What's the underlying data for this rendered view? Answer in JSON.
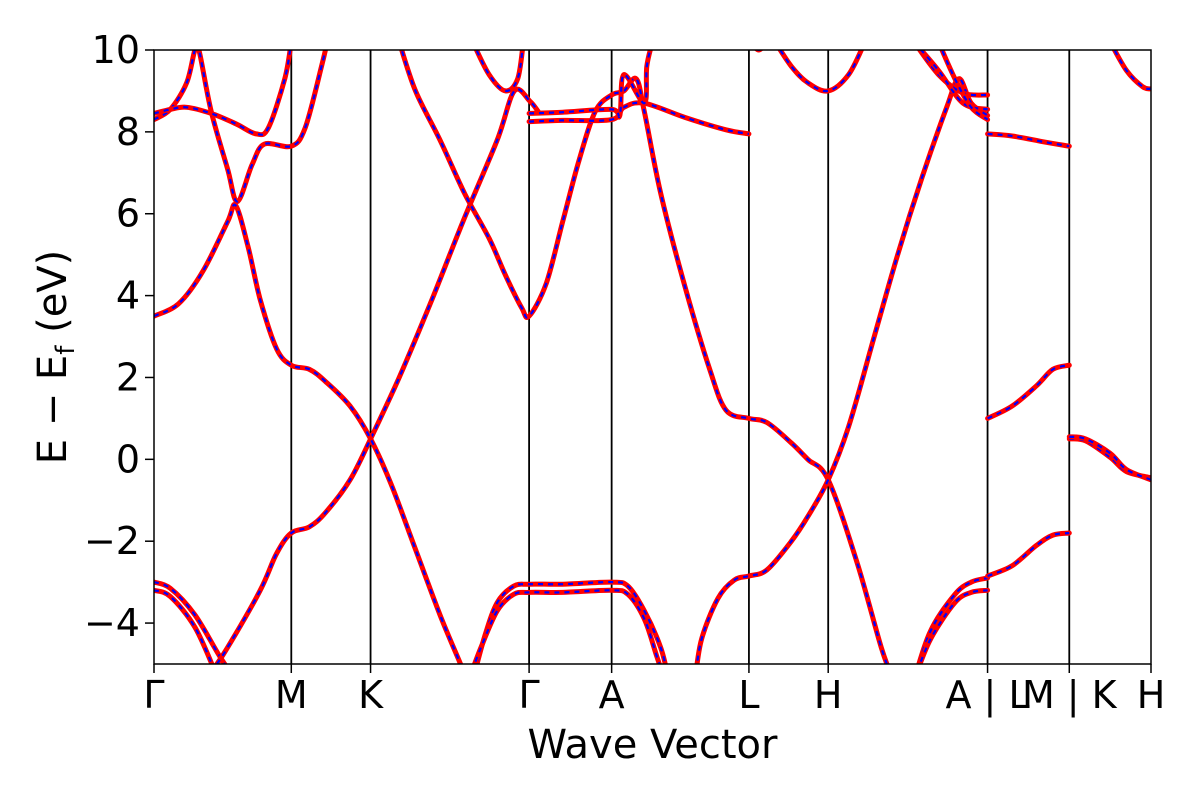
{
  "chart_data": {
    "type": "line",
    "xlabel": "Wave Vector",
    "ylabel": "E − E",
    "ylabel_sub": "f",
    "ylabel_unit": " (eV)",
    "ylim": [
      -5,
      10
    ],
    "yticks": [
      -4,
      -2,
      0,
      2,
      4,
      6,
      8,
      10
    ],
    "ytick_labels": [
      "−4",
      "−2",
      "0",
      "2",
      "4",
      "6",
      "8",
      "10"
    ],
    "xlim": [
      0,
      1.22
    ],
    "kpoints": [
      {
        "x": 0.0,
        "label": "Γ"
      },
      {
        "x": 0.168,
        "label": "M"
      },
      {
        "x": 0.265,
        "label": "K"
      },
      {
        "x": 0.459,
        "label": "Γ"
      },
      {
        "x": 0.56,
        "label": "A"
      },
      {
        "x": 0.728,
        "label": "L"
      },
      {
        "x": 0.825,
        "label": "H"
      },
      {
        "x": 1.02,
        "label": "A | L"
      },
      {
        "x": 1.12,
        "label": "M | K"
      },
      {
        "x": 1.22,
        "label": "H"
      }
    ],
    "line_colors": {
      "solid": "#ff0000",
      "dashed": "#0000ff"
    },
    "bands": [
      [
        [
          0.0,
          -3.0
        ],
        [
          0.02,
          -3.15
        ],
        [
          0.05,
          -3.8
        ],
        [
          0.08,
          -4.8
        ],
        [
          0.1,
          -5.4
        ]
      ],
      [
        [
          0.0,
          -3.2
        ],
        [
          0.02,
          -3.35
        ],
        [
          0.05,
          -4.1
        ],
        [
          0.075,
          -5.2
        ]
      ],
      [
        [
          0.07,
          -5.2
        ],
        [
          0.09,
          -4.6
        ],
        [
          0.13,
          -3.2
        ],
        [
          0.15,
          -2.3
        ],
        [
          0.168,
          -1.8
        ],
        [
          0.19,
          -1.65
        ],
        [
          0.21,
          -1.3
        ],
        [
          0.24,
          -0.5
        ],
        [
          0.265,
          0.5
        ],
        [
          0.3,
          2.0
        ],
        [
          0.34,
          3.9
        ],
        [
          0.38,
          5.9
        ],
        [
          0.42,
          7.8
        ],
        [
          0.441,
          9.0
        ],
        [
          0.46,
          8.75
        ],
        [
          0.47,
          8.5
        ]
      ],
      [
        [
          0.0,
          3.5
        ],
        [
          0.03,
          3.8
        ],
        [
          0.06,
          4.6
        ],
        [
          0.09,
          5.8
        ],
        [
          0.1,
          6.2
        ],
        [
          0.115,
          5.2
        ],
        [
          0.13,
          3.9
        ],
        [
          0.15,
          2.7
        ],
        [
          0.168,
          2.3
        ],
        [
          0.19,
          2.2
        ],
        [
          0.21,
          1.9
        ],
        [
          0.24,
          1.3
        ],
        [
          0.265,
          0.5
        ],
        [
          0.29,
          -0.6
        ],
        [
          0.32,
          -2.2
        ],
        [
          0.35,
          -3.8
        ],
        [
          0.375,
          -5.0
        ],
        [
          0.385,
          -5.5
        ]
      ],
      [
        [
          0.0,
          8.3
        ],
        [
          0.02,
          8.55
        ],
        [
          0.04,
          9.2
        ],
        [
          0.05,
          10.0
        ],
        [
          0.055,
          10.0
        ],
        [
          0.07,
          8.5
        ],
        [
          0.09,
          7.1
        ],
        [
          0.102,
          6.3
        ],
        [
          0.12,
          7.2
        ],
        [
          0.135,
          7.7
        ],
        [
          0.168,
          7.65
        ],
        [
          0.185,
          8.1
        ],
        [
          0.205,
          9.6
        ],
        [
          0.212,
          10.2
        ]
      ],
      [
        [
          0.0,
          8.45
        ],
        [
          0.02,
          8.55
        ],
        [
          0.04,
          8.6
        ],
        [
          0.07,
          8.45
        ],
        [
          0.1,
          8.2
        ],
        [
          0.125,
          7.95
        ],
        [
          0.14,
          8.1
        ],
        [
          0.16,
          9.3
        ],
        [
          0.168,
          10.2
        ]
      ],
      [
        [
          0.3,
          10.2
        ],
        [
          0.32,
          9.0
        ],
        [
          0.35,
          7.8
        ],
        [
          0.38,
          6.5
        ],
        [
          0.41,
          5.4
        ],
        [
          0.43,
          4.5
        ],
        [
          0.45,
          3.7
        ],
        [
          0.459,
          3.5
        ],
        [
          0.48,
          4.3
        ],
        [
          0.5,
          5.8
        ],
        [
          0.52,
          7.3
        ],
        [
          0.54,
          8.5
        ],
        [
          0.56,
          8.9
        ],
        [
          0.575,
          9.0
        ],
        [
          0.59,
          9.3
        ],
        [
          0.6,
          8.5
        ],
        [
          0.62,
          6.5
        ],
        [
          0.65,
          4.2
        ],
        [
          0.68,
          2.2
        ],
        [
          0.7,
          1.2
        ],
        [
          0.728,
          1.0
        ],
        [
          0.75,
          0.9
        ],
        [
          0.78,
          0.4
        ],
        [
          0.8,
          0.0
        ],
        [
          0.825,
          -0.5
        ],
        [
          0.86,
          -2.5
        ],
        [
          0.89,
          -4.6
        ],
        [
          0.905,
          -5.4
        ]
      ],
      [
        [
          0.39,
          10.2
        ],
        [
          0.41,
          9.4
        ],
        [
          0.43,
          9.0
        ],
        [
          0.445,
          9.3
        ],
        [
          0.452,
          10.2
        ]
      ],
      [
        [
          0.39,
          -5.4
        ],
        [
          0.405,
          -4.3
        ],
        [
          0.42,
          -3.5
        ],
        [
          0.44,
          -3.1
        ],
        [
          0.459,
          -3.05
        ],
        [
          0.5,
          -3.05
        ],
        [
          0.56,
          -3.0
        ],
        [
          0.58,
          -3.1
        ],
        [
          0.6,
          -3.7
        ],
        [
          0.62,
          -4.6
        ],
        [
          0.63,
          -5.4
        ]
      ],
      [
        [
          0.385,
          -5.4
        ],
        [
          0.4,
          -4.6
        ],
        [
          0.42,
          -3.7
        ],
        [
          0.44,
          -3.3
        ],
        [
          0.459,
          -3.25
        ],
        [
          0.5,
          -3.25
        ],
        [
          0.56,
          -3.2
        ],
        [
          0.58,
          -3.3
        ],
        [
          0.6,
          -3.9
        ],
        [
          0.615,
          -4.8
        ],
        [
          0.625,
          -5.4
        ]
      ],
      [
        [
          0.459,
          8.25
        ],
        [
          0.5,
          8.28
        ],
        [
          0.56,
          8.3
        ],
        [
          0.575,
          8.6
        ],
        [
          0.6,
          8.7
        ],
        [
          0.65,
          8.35
        ],
        [
          0.7,
          8.05
        ],
        [
          0.728,
          7.95
        ]
      ],
      [
        [
          0.459,
          8.45
        ],
        [
          0.5,
          8.48
        ],
        [
          0.56,
          8.55
        ],
        [
          0.57,
          8.4
        ],
        [
          0.575,
          9.4
        ],
        [
          0.6,
          8.7
        ],
        [
          0.603,
          9.6
        ],
        [
          0.61,
          10.2
        ]
      ],
      [
        [
          0.662,
          -5.4
        ],
        [
          0.67,
          -4.4
        ],
        [
          0.69,
          -3.4
        ],
        [
          0.71,
          -2.95
        ],
        [
          0.728,
          -2.85
        ],
        [
          0.75,
          -2.7
        ],
        [
          0.78,
          -2.0
        ],
        [
          0.8,
          -1.4
        ],
        [
          0.825,
          -0.5
        ],
        [
          0.85,
          0.8
        ],
        [
          0.88,
          2.9
        ],
        [
          0.91,
          5.0
        ],
        [
          0.94,
          6.9
        ],
        [
          0.97,
          8.6
        ],
        [
          0.985,
          9.3
        ],
        [
          1.0,
          8.7
        ],
        [
          1.02,
          8.4
        ]
      ],
      [
        [
          0.76,
          10.2
        ],
        [
          0.78,
          9.6
        ],
        [
          0.8,
          9.2
        ],
        [
          0.825,
          9.0
        ],
        [
          0.85,
          9.4
        ],
        [
          0.87,
          10.2
        ]
      ],
      [
        [
          0.73,
          10.2
        ],
        [
          0.74,
          10.0
        ],
        [
          0.75,
          10.2
        ]
      ],
      [
        [
          0.93,
          -5.4
        ],
        [
          0.95,
          -4.2
        ],
        [
          0.98,
          -3.3
        ],
        [
          1.0,
          -3.0
        ],
        [
          1.02,
          -2.9
        ]
      ],
      [
        [
          0.93,
          -5.4
        ],
        [
          0.95,
          -4.4
        ],
        [
          0.98,
          -3.5
        ],
        [
          1.0,
          -3.25
        ],
        [
          1.02,
          -3.2
        ]
      ],
      [
        [
          0.93,
          10.2
        ],
        [
          0.96,
          9.4
        ],
        [
          0.99,
          8.95
        ],
        [
          1.02,
          8.9
        ]
      ],
      [
        [
          0.93,
          10.2
        ],
        [
          0.96,
          9.5
        ],
        [
          0.99,
          8.7
        ],
        [
          1.02,
          8.55
        ]
      ],
      [
        [
          0.96,
          10.2
        ],
        [
          0.98,
          9.3
        ],
        [
          1.0,
          8.6
        ],
        [
          1.02,
          8.3
        ]
      ],
      [
        [
          1.02,
          7.95
        ],
        [
          1.05,
          7.9
        ],
        [
          1.09,
          7.75
        ],
        [
          1.12,
          7.65
        ]
      ],
      [
        [
          1.02,
          1.0
        ],
        [
          1.05,
          1.3
        ],
        [
          1.08,
          1.8
        ],
        [
          1.1,
          2.2
        ],
        [
          1.12,
          2.3
        ]
      ],
      [
        [
          1.02,
          -2.85
        ],
        [
          1.05,
          -2.6
        ],
        [
          1.08,
          -2.1
        ],
        [
          1.1,
          -1.85
        ],
        [
          1.12,
          -1.8
        ]
      ],
      [
        [
          1.12,
          0.5
        ],
        [
          1.14,
          0.45
        ],
        [
          1.17,
          0.05
        ],
        [
          1.19,
          -0.3
        ],
        [
          1.22,
          -0.45
        ]
      ],
      [
        [
          1.12,
          0.55
        ],
        [
          1.14,
          0.5
        ],
        [
          1.17,
          0.15
        ],
        [
          1.19,
          -0.25
        ],
        [
          1.22,
          -0.5
        ]
      ],
      [
        [
          1.17,
          10.2
        ],
        [
          1.19,
          9.5
        ],
        [
          1.21,
          9.1
        ],
        [
          1.22,
          9.05
        ]
      ]
    ]
  }
}
